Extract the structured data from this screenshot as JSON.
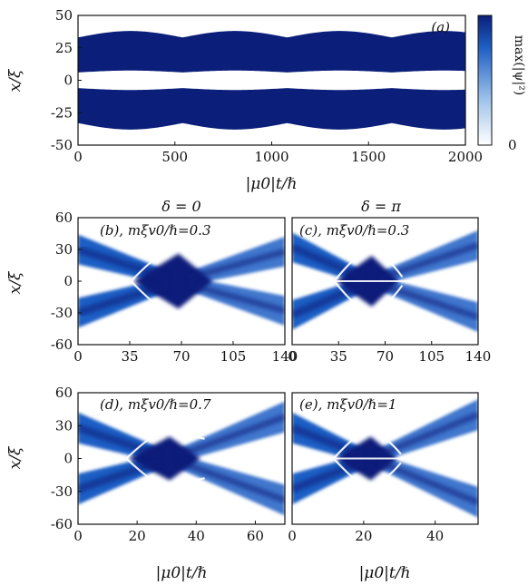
{
  "colors": {
    "dark": "#0b1f7a",
    "mid": "#1f5fc4",
    "light": "#9fc3ea",
    "frame": "#111111"
  },
  "chart_data": [
    {
      "type": "heatmap",
      "panel_label": "(a)",
      "xlabel": "|μ0|t/ℏ",
      "ylabel": "x/ξ",
      "xlim": [
        0,
        2000
      ],
      "ylim": [
        -50,
        50
      ],
      "xticks": [
        "0",
        "500",
        "1000",
        "1500",
        "2000"
      ],
      "yticks": [
        "50",
        "25",
        "0",
        "-25",
        "-50"
      ],
      "colorbar": {
        "label": "max(|ψ|²)",
        "ticks": [
          "0"
        ]
      },
      "solitons": {
        "separation_min": 10,
        "separation_max": 13,
        "outer_edge_min": 33,
        "outer_edge_max": 38,
        "period": 540
      }
    },
    {
      "type": "heatmap",
      "header": "δ = 0",
      "annotation": "(b), mξv0/ℏ=0.3",
      "xlim": [
        0,
        140
      ],
      "ylim": [
        -60,
        60
      ],
      "xticks": [
        "0",
        "35",
        "70",
        "105",
        "140"
      ],
      "yticks": [
        "60",
        "30",
        "0",
        "-30",
        "-60"
      ],
      "ylabel": "x/ξ",
      "collision_time": 68,
      "initial_center": 30,
      "final_center": 28
    },
    {
      "type": "heatmap",
      "header": "δ = π",
      "annotation": "(c), mξv0/ℏ=0.3",
      "xlim": [
        0,
        140
      ],
      "ylim": [
        -60,
        60
      ],
      "xticks": [
        "0",
        "35",
        "70",
        "105",
        "140"
      ],
      "collision_time": 60,
      "initial_center": 32,
      "final_center": 34
    },
    {
      "type": "heatmap",
      "annotation": "(d), mξv0/ℏ=0.7",
      "xlim": [
        0,
        70
      ],
      "ylim": [
        -60,
        60
      ],
      "xticks": [
        "0",
        "20",
        "40",
        "60"
      ],
      "yticks": [
        "60",
        "30",
        "0",
        "-30",
        "-60"
      ],
      "xlabel": "|μ0|t/ℏ",
      "ylabel": "x/ξ",
      "collision_time": 31,
      "initial_center": 28,
      "final_center": 38
    },
    {
      "type": "heatmap",
      "annotation": "(e), mξv0/ℏ=1",
      "xlim": [
        0,
        52
      ],
      "ylim": [
        -60,
        60
      ],
      "xticks": [
        "0",
        "20",
        "40"
      ],
      "xlabel": "|μ0|t/ℏ",
      "collision_time": 22,
      "initial_center": 28,
      "final_center": 40
    }
  ]
}
